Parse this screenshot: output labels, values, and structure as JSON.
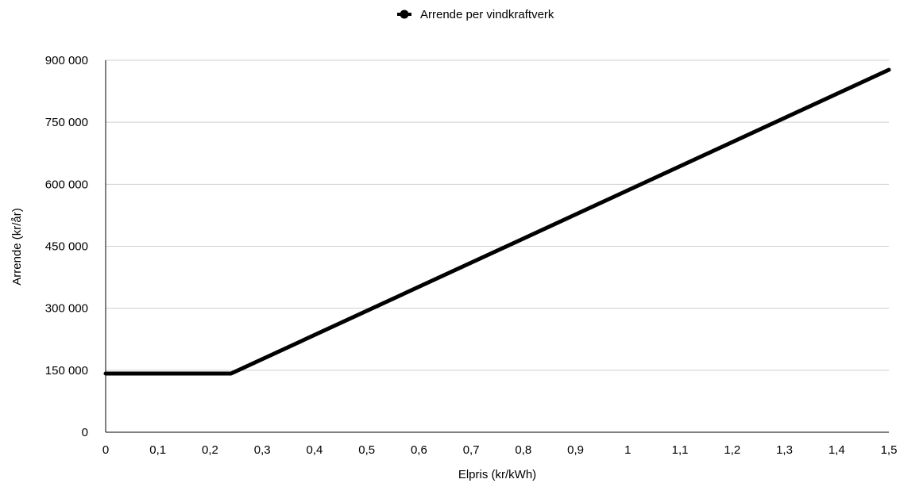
{
  "chart_data": {
    "type": "line",
    "xlabel": "Elpris (kr/kWh)",
    "ylabel": "Arrende (kr/år)",
    "xlim": [
      0,
      1.5
    ],
    "ylim": [
      0,
      900000
    ],
    "x_ticks": [
      0,
      0.1,
      0.2,
      0.3,
      0.4,
      0.5,
      0.6,
      0.7,
      0.8,
      0.9,
      1,
      1.1,
      1.2,
      1.3,
      1.4,
      1.5
    ],
    "x_tick_labels": [
      "0",
      "0,1",
      "0,2",
      "0,3",
      "0,4",
      "0,5",
      "0,6",
      "0,7",
      "0,8",
      "0,9",
      "1",
      "1,1",
      "1,2",
      "1,3",
      "1,4",
      "1,5"
    ],
    "y_ticks": [
      0,
      150000,
      300000,
      450000,
      600000,
      750000,
      900000
    ],
    "y_tick_labels": [
      "0",
      "150 000",
      "300 000",
      "450 000",
      "600 000",
      "750 000",
      "900 000"
    ],
    "grid": "horizontal",
    "legend_position": "top-center",
    "series": [
      {
        "name": "Arrende per vindkraftverk",
        "color": "#000000",
        "x": [
          0,
          0.24,
          1.5
        ],
        "y": [
          142000,
          142000,
          877000
        ]
      }
    ]
  }
}
